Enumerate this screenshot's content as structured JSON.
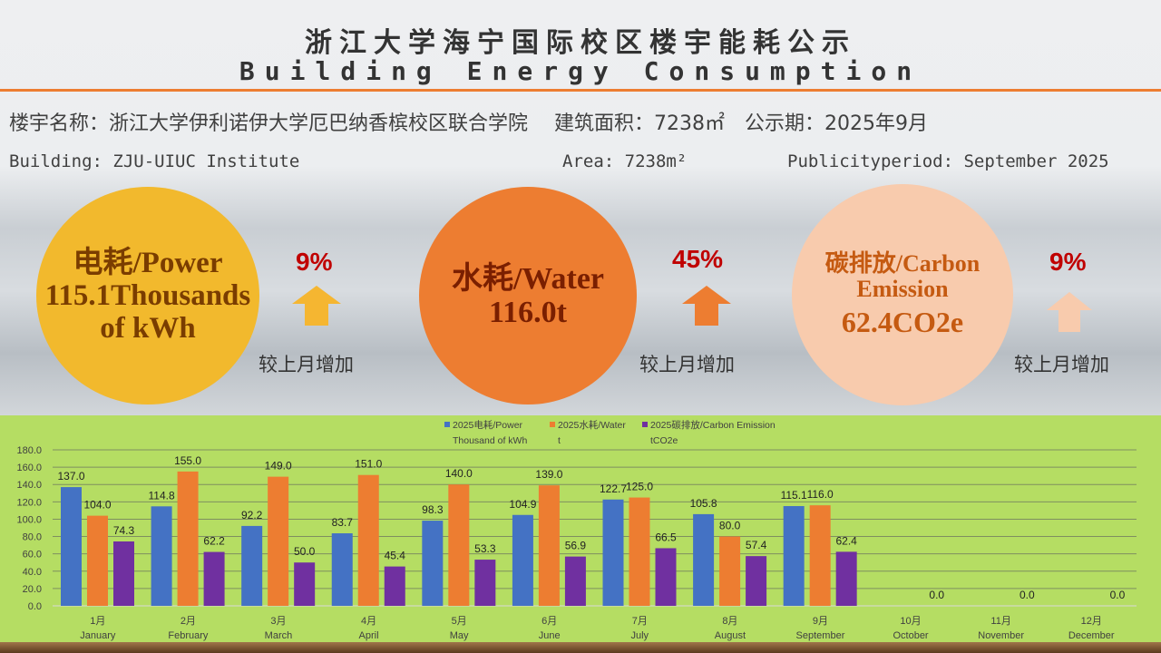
{
  "header": {
    "title_cn": "浙江大学海宁国际校区楼宇能耗公示",
    "title_en": "Building Energy Consumption"
  },
  "info": {
    "cn_line": "楼宇名称：浙江大学伊利诺伊大学厄巴纳香槟校区联合学院　 建筑面积：7238㎡　公示期：2025年9月",
    "building_en": "Building: ZJU-UIUC Institute",
    "area_en": "Area: 7238m²",
    "period_en": "Publicityperiod: September 2025"
  },
  "kpis": [
    {
      "label": "电耗/Power",
      "value": "115.1Thousands of kWh",
      "change": "9%",
      "change_label": "较上月增加",
      "color": "#f2b92d",
      "arrow_color": "#f5b631"
    },
    {
      "label": "水耗/Water",
      "value": "116.0t",
      "change": "45%",
      "change_label": "较上月增加",
      "color": "#ed7d31",
      "arrow_color": "#ed7d31"
    },
    {
      "label": "碳排放/Carbon Emission",
      "value": "62.4CO2e",
      "change": "9%",
      "change_label": "较上月增加",
      "color": "#f8cbad",
      "arrow_color": "#f8cbad"
    }
  ],
  "chart_data": {
    "type": "bar",
    "categories": [
      "1月 January",
      "2月 February",
      "3月 March",
      "4月 April",
      "5月 May",
      "6月 June",
      "7月 July",
      "8月 August",
      "9月 September",
      "10月 October",
      "11月 November",
      "12月 December"
    ],
    "cat_cn": [
      "1月",
      "2月",
      "3月",
      "4月",
      "5月",
      "6月",
      "7月",
      "8月",
      "9月",
      "10月",
      "11月",
      "12月"
    ],
    "cat_en": [
      "January",
      "February",
      "March",
      "April",
      "May",
      "June",
      "July",
      "August",
      "September",
      "October",
      "November",
      "December"
    ],
    "series": [
      {
        "name": "2025电耗/Power Thousand of kWh",
        "name1": "2025电耗/Power",
        "name2": "Thousand of kWh",
        "color": "#4472c4",
        "values": [
          137.0,
          114.8,
          92.2,
          83.7,
          98.3,
          104.9,
          122.7,
          105.8,
          115.1,
          null,
          null,
          null
        ]
      },
      {
        "name": "2025水耗/Water t",
        "name1": "2025水耗/Water",
        "name2": "t",
        "color": "#ed7d31",
        "values": [
          104.0,
          155.0,
          149.0,
          151.0,
          140.0,
          139.0,
          125.0,
          80.0,
          116.0,
          null,
          null,
          null
        ]
      },
      {
        "name": "2025碳排放/Carbon Emission tCO2e",
        "name1": "2025碳排放/Carbon Emission",
        "name2": "tCO2e",
        "color": "#7030a0",
        "values": [
          74.3,
          62.2,
          50.0,
          45.4,
          53.3,
          56.9,
          66.5,
          57.4,
          62.4,
          0.0,
          0.0,
          0.0
        ]
      }
    ],
    "ylim": [
      0,
      180
    ],
    "yticks": [
      0,
      20,
      40,
      60,
      80,
      100,
      120,
      140,
      160,
      180
    ],
    "grid": true,
    "legend": "top-center"
  }
}
